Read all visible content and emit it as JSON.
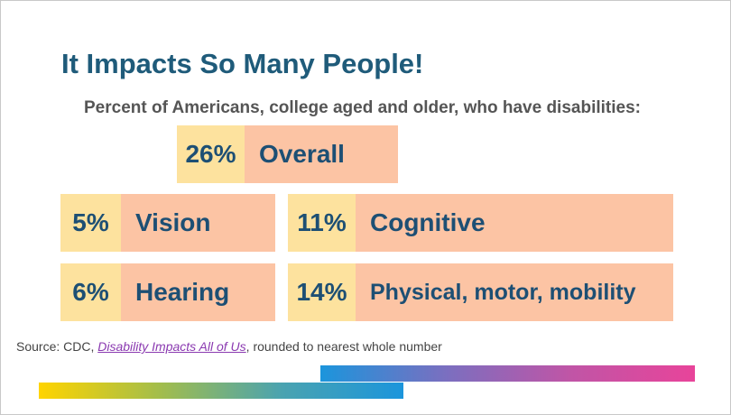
{
  "title": "It Impacts So Many People!",
  "subtitle": "Percent of Americans, college aged and older, who have disabilities:",
  "stats": {
    "overall": {
      "pct": "26%",
      "label": "Overall"
    },
    "vision": {
      "pct": "5%",
      "label": "Vision"
    },
    "cognitive": {
      "pct": "11%",
      "label": "Cognitive"
    },
    "hearing": {
      "pct": "6%",
      "label": "Hearing"
    },
    "physical": {
      "pct": "14%",
      "label": "Physical, motor, mobility"
    }
  },
  "source": {
    "prefix": "Source: CDC, ",
    "link_text": "Disability Impacts All of Us",
    "suffix": ", rounded to nearest whole number"
  },
  "colors": {
    "title": "#1f5b7a",
    "pct_bg": "#fde29e",
    "label_bg": "#fcc4a4",
    "stat_text": "#1d4f74",
    "link": "#8a39b0"
  }
}
